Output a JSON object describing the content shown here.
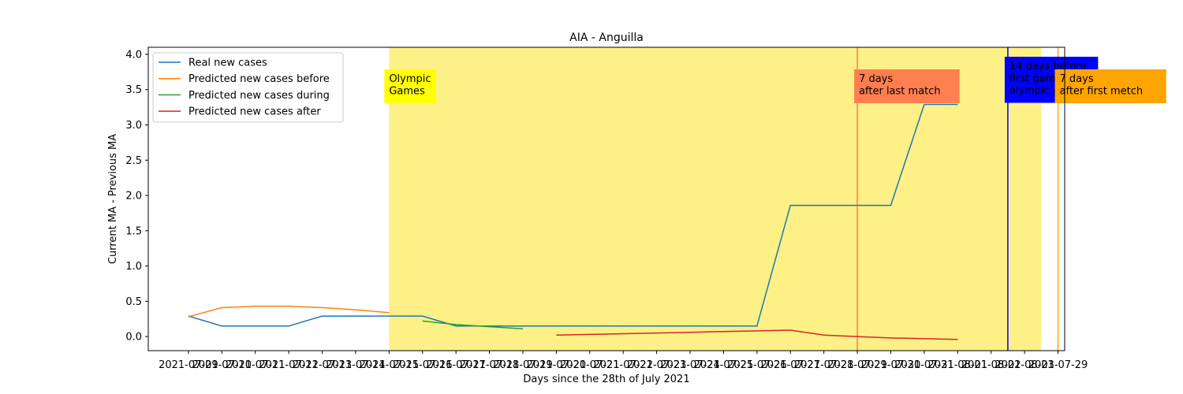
{
  "chart_data": {
    "type": "line",
    "title": "AIA - Anguilla",
    "xlabel": "Days since the 28th of July 2021",
    "ylabel": "Current MA - Previous MA",
    "ylim": [
      -0.2,
      4.1
    ],
    "yticks": [
      0.0,
      0.5,
      1.0,
      1.5,
      2.0,
      2.5,
      3.0,
      3.5,
      4.0
    ],
    "ytick_labels": [
      "0.0",
      "0.5",
      "1.0",
      "1.5",
      "2.0",
      "2.5",
      "3.0",
      "3.5",
      "4.0"
    ],
    "x_index_range": [
      -1.2,
      26.2
    ],
    "xtick_labels": [
      "2021-07-09",
      "2021-07-10",
      "2021-07-11",
      "2021-07-12",
      "2021-07-13",
      "2021-07-14",
      "2021-07-15",
      "2021-07-16",
      "2021-07-17",
      "2021-07-18",
      "2021-07-19",
      "2021-07-20",
      "2021-07-21",
      "2021-07-22",
      "2021-07-23",
      "2021-07-24",
      "2021-07-25",
      "2021-07-26",
      "2021-07-27",
      "2021-07-28",
      "2021-07-29",
      "2021-07-30",
      "2021-07-31",
      "2021-08-01",
      "2021-08-02",
      "2021-08-03",
      "2021-07-29"
    ],
    "grid": false,
    "legend_position": "upper-left",
    "series": [
      {
        "name": "Real new cases",
        "color": "#1f77b4",
        "x": [
          0,
          1,
          2,
          3,
          4,
          5,
          6,
          7,
          8,
          9,
          10,
          11,
          12,
          13,
          14,
          15,
          16,
          17,
          18,
          19,
          20,
          21,
          22,
          23
        ],
        "values": [
          0.29,
          0.15,
          0.15,
          0.15,
          0.29,
          0.29,
          0.29,
          0.29,
          0.15,
          0.15,
          0.15,
          0.15,
          0.15,
          0.15,
          0.15,
          0.15,
          0.15,
          0.15,
          1.86,
          1.86,
          1.86,
          1.86,
          3.29,
          3.29
        ]
      },
      {
        "name": "Predicted new cases before",
        "color": "#ff7f0e",
        "x": [
          0,
          1,
          2,
          3,
          4,
          5,
          6
        ],
        "values": [
          0.28,
          0.41,
          0.43,
          0.43,
          0.41,
          0.38,
          0.34
        ]
      },
      {
        "name": "Predicted new cases during",
        "color": "#2ca02c",
        "x": [
          7,
          8,
          9,
          10
        ],
        "values": [
          0.22,
          0.17,
          0.14,
          0.11
        ]
      },
      {
        "name": "Predicted new cases after",
        "color": "#d62728",
        "x": [
          11,
          12,
          13,
          14,
          15,
          16,
          17,
          18,
          19,
          20,
          21,
          22,
          23
        ],
        "values": [
          0.02,
          0.03,
          0.04,
          0.05,
          0.06,
          0.07,
          0.08,
          0.09,
          0.02,
          0.0,
          -0.02,
          -0.03,
          -0.04
        ]
      }
    ],
    "shaded_span": {
      "x_start": 6,
      "x_end": 25.5,
      "color": "#fdf086",
      "label": "Olympic\nGames",
      "label_bg": "#ffff00"
    },
    "vlines": [
      {
        "x": 20,
        "color": "#ff7f50",
        "label": "7 days\nafter last match",
        "label_bg": "#ff7f50",
        "label_color": "#000000"
      },
      {
        "x": 24.5,
        "color": "#0000ff",
        "label": "14 days before\nfirst game of\nolympic games",
        "label_bg": "#0000ff",
        "label_color": "#ffffff"
      },
      {
        "x": 26,
        "color": "#ffa500",
        "label": "7 days\nafter first metch",
        "label_bg": "#ffa500",
        "label_color": "#000000"
      }
    ]
  }
}
